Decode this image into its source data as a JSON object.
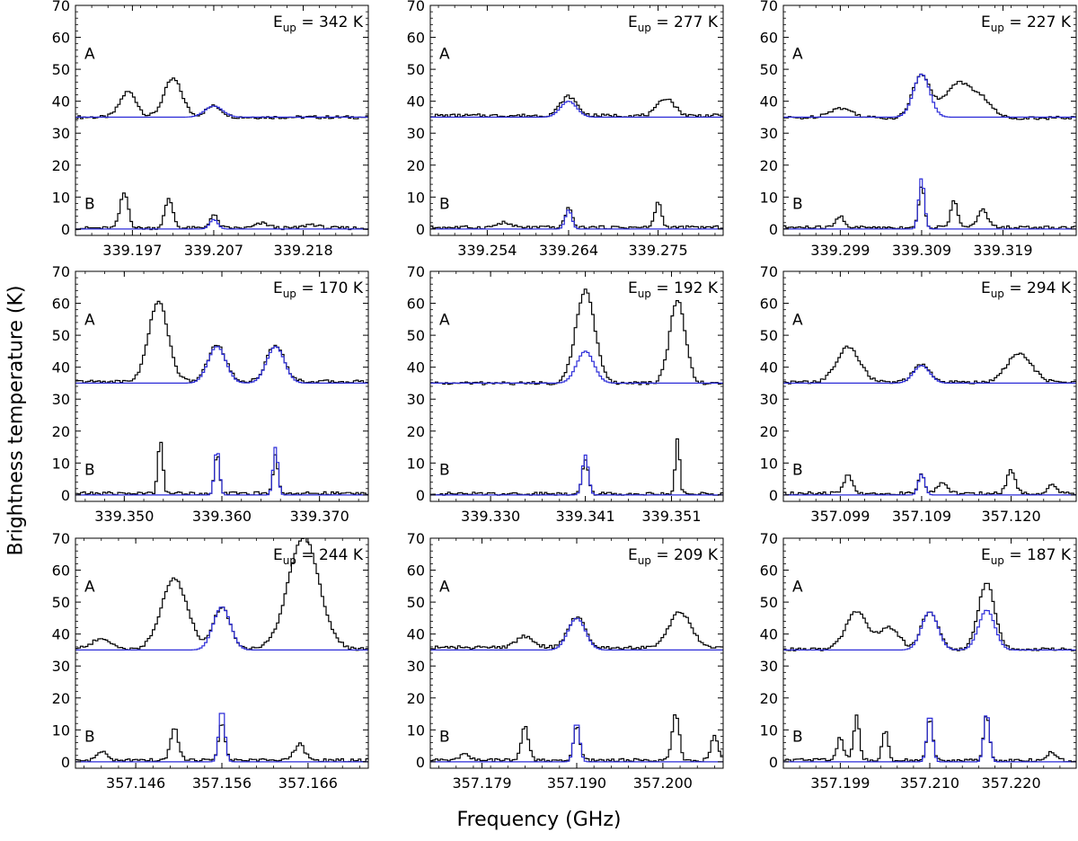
{
  "figure": {
    "xlabel": "Frequency (GHz)",
    "ylabel": "Brightness temperature (K)",
    "colors": {
      "observed": "#000000",
      "model": "#2b2bd8",
      "frame": "#000000"
    }
  },
  "chart_data": [
    {
      "type": "line",
      "panel": "1",
      "eup_label": "342 K",
      "ylim": [
        -2,
        70
      ],
      "yticks": [
        0,
        10,
        20,
        30,
        40,
        50,
        60,
        70
      ],
      "xlim": [
        339.19,
        339.226
      ],
      "xticks": [
        "339.197",
        "339.207",
        "339.218"
      ],
      "labels": [
        "A",
        "B"
      ],
      "series": [
        {
          "name": "observed A",
          "baseline": 35,
          "peaks": [
            [
              339.1965,
              8,
              1.0
            ],
            [
              339.202,
              12,
              1.1
            ],
            [
              339.207,
              3.5,
              1.0
            ]
          ]
        },
        {
          "name": "model A",
          "baseline": 35,
          "peaks": [
            [
              339.207,
              3.5,
              1.1
            ]
          ]
        },
        {
          "name": "observed B",
          "baseline": 0.3,
          "peaks": [
            [
              339.196,
              11,
              0.5
            ],
            [
              339.2015,
              9,
              0.5
            ],
            [
              339.207,
              4,
              0.5
            ],
            [
              339.213,
              1.5,
              0.8
            ],
            [
              339.219,
              1.2,
              0.8
            ]
          ]
        },
        {
          "name": "model B",
          "baseline": 0,
          "peaks": [
            [
              339.207,
              3,
              0.5
            ]
          ]
        }
      ]
    },
    {
      "type": "line",
      "panel": "2",
      "eup_label": "277 K",
      "ylim": [
        -2,
        70
      ],
      "yticks": [
        0,
        10,
        20,
        30,
        40,
        50,
        60,
        70
      ],
      "xlim": [
        339.247,
        339.283
      ],
      "xticks": [
        "339.254",
        "339.264",
        "339.275"
      ],
      "labels": [
        "A",
        "B"
      ],
      "series": [
        {
          "name": "observed A",
          "baseline": 35.5,
          "peaks": [
            [
              339.264,
              6,
              1.0
            ],
            [
              339.276,
              5.5,
              1.0
            ]
          ]
        },
        {
          "name": "model A",
          "baseline": 35,
          "peaks": [
            [
              339.264,
              5,
              1.0
            ]
          ]
        },
        {
          "name": "observed B",
          "baseline": 0.5,
          "peaks": [
            [
              339.264,
              6.5,
              0.4
            ],
            [
              339.275,
              8,
              0.4
            ],
            [
              339.256,
              1.5,
              0.8
            ]
          ]
        },
        {
          "name": "model B",
          "baseline": 0,
          "peaks": [
            [
              339.264,
              6,
              0.4
            ]
          ]
        }
      ]
    },
    {
      "type": "line",
      "panel": "3",
      "eup_label": "227 K",
      "ylim": [
        -2,
        70
      ],
      "yticks": [
        0,
        10,
        20,
        30,
        40,
        50,
        60,
        70
      ],
      "xlim": [
        339.292,
        339.328
      ],
      "xticks": [
        "339.299",
        "339.309",
        "339.319"
      ],
      "labels": [
        "A",
        "B"
      ],
      "series": [
        {
          "name": "observed A",
          "baseline": 34.8,
          "peaks": [
            [
              339.309,
              13.5,
              1.1
            ],
            [
              339.3135,
              11,
              1.6
            ],
            [
              339.299,
              3,
              1.5
            ],
            [
              339.3165,
              5,
              1.2
            ]
          ]
        },
        {
          "name": "model A",
          "baseline": 35,
          "peaks": [
            [
              339.309,
              13.5,
              1.0
            ]
          ]
        },
        {
          "name": "observed B",
          "baseline": 0.5,
          "peaks": [
            [
              339.309,
              13,
              0.35
            ],
            [
              339.313,
              9,
              0.4
            ],
            [
              339.3165,
              5.5,
              0.6
            ],
            [
              339.299,
              3.5,
              0.5
            ]
          ]
        },
        {
          "name": "model B",
          "baseline": 0,
          "peaks": [
            [
              339.309,
              16,
              0.35
            ]
          ]
        }
      ]
    },
    {
      "type": "line",
      "panel": "4",
      "eup_label": "170 K",
      "ylim": [
        -2,
        70
      ],
      "yticks": [
        0,
        10,
        20,
        30,
        40,
        50,
        60,
        70
      ],
      "xlim": [
        339.345,
        339.375
      ],
      "xticks": [
        "339.350",
        "339.360",
        "339.370"
      ],
      "labels": [
        "A",
        "B"
      ],
      "series": [
        {
          "name": "observed A",
          "baseline": 35.5,
          "peaks": [
            [
              339.3535,
              25,
              1.0
            ],
            [
              339.3595,
              11.5,
              0.9
            ],
            [
              339.3655,
              11.5,
              0.9
            ]
          ]
        },
        {
          "name": "model A",
          "baseline": 35,
          "peaks": [
            [
              339.3595,
              11.5,
              0.9
            ],
            [
              339.3655,
              11.5,
              0.9
            ]
          ]
        },
        {
          "name": "observed B",
          "baseline": 0.5,
          "peaks": [
            [
              339.3537,
              17,
              0.25
            ],
            [
              339.3595,
              12.5,
              0.25
            ],
            [
              339.3655,
              12,
              0.25
            ]
          ]
        },
        {
          "name": "model B",
          "baseline": 0,
          "peaks": [
            [
              339.3595,
              14.5,
              0.25
            ],
            [
              339.3655,
              15,
              0.25
            ]
          ]
        }
      ]
    },
    {
      "type": "line",
      "panel": "5",
      "eup_label": "192 K",
      "ylim": [
        -2,
        70
      ],
      "yticks": [
        0,
        10,
        20,
        30,
        40,
        50,
        60,
        70
      ],
      "xlim": [
        339.323,
        339.357
      ],
      "xticks": [
        "339.330",
        "339.341",
        "339.351"
      ],
      "labels": [
        "A",
        "B"
      ],
      "series": [
        {
          "name": "observed A",
          "baseline": 35,
          "peaks": [
            [
              339.341,
              29,
              1.1
            ],
            [
              339.3517,
              26,
              0.9
            ]
          ]
        },
        {
          "name": "model A",
          "baseline": 35,
          "peaks": [
            [
              339.341,
              10,
              1.0
            ]
          ]
        },
        {
          "name": "observed B",
          "baseline": 0.4,
          "peaks": [
            [
              339.341,
              11,
              0.35
            ],
            [
              339.3517,
              17.5,
              0.25
            ]
          ]
        },
        {
          "name": "model B",
          "baseline": 0,
          "peaks": [
            [
              339.341,
              12.5,
              0.35
            ]
          ]
        }
      ]
    },
    {
      "type": "line",
      "panel": "6",
      "eup_label": "294 K",
      "ylim": [
        -2,
        70
      ],
      "yticks": [
        0,
        10,
        20,
        30,
        40,
        50,
        60,
        70
      ],
      "xlim": [
        357.092,
        357.128
      ],
      "xticks": [
        "357.099",
        "357.109",
        "357.120"
      ],
      "labels": [
        "A",
        "B"
      ],
      "series": [
        {
          "name": "observed A",
          "baseline": 35.3,
          "peaks": [
            [
              357.1,
              11,
              1.4
            ],
            [
              357.109,
              5.5,
              1.0
            ],
            [
              357.121,
              9,
              1.5
            ]
          ]
        },
        {
          "name": "model A",
          "baseline": 35,
          "peaks": [
            [
              357.109,
              5.5,
              1.0
            ]
          ]
        },
        {
          "name": "observed B",
          "baseline": 0.5,
          "peaks": [
            [
              357.1,
              6,
              0.5
            ],
            [
              357.109,
              6,
              0.4
            ],
            [
              357.12,
              7.5,
              0.5
            ],
            [
              357.125,
              2.5,
              0.5
            ],
            [
              357.1115,
              3,
              0.6
            ]
          ]
        },
        {
          "name": "model B",
          "baseline": 0,
          "peaks": [
            [
              357.109,
              6.5,
              0.4
            ]
          ]
        }
      ]
    },
    {
      "type": "line",
      "panel": "7",
      "eup_label": "244 K",
      "ylim": [
        -2,
        70
      ],
      "yticks": [
        0,
        10,
        20,
        30,
        40,
        50,
        60,
        70
      ],
      "xlim": [
        357.139,
        357.173
      ],
      "xticks": [
        "357.146",
        "357.156",
        "357.166"
      ],
      "labels": [
        "A",
        "B"
      ],
      "series": [
        {
          "name": "observed A",
          "baseline": 35.3,
          "peaks": [
            [
              357.1505,
              22,
              1.5
            ],
            [
              357.156,
              13,
              1.0
            ],
            [
              357.1655,
              35,
              1.8
            ],
            [
              357.142,
              3,
              1.2
            ]
          ]
        },
        {
          "name": "model A",
          "baseline": 35,
          "peaks": [
            [
              357.156,
              13.5,
              1.0
            ]
          ]
        },
        {
          "name": "observed B",
          "baseline": 0.5,
          "peaks": [
            [
              357.1505,
              10,
              0.45
            ],
            [
              357.156,
              12,
              0.35
            ],
            [
              357.165,
              5,
              0.6
            ],
            [
              357.142,
              3,
              0.5
            ]
          ]
        },
        {
          "name": "model B",
          "baseline": 0,
          "peaks": [
            [
              357.156,
              16.5,
              0.35
            ]
          ]
        }
      ]
    },
    {
      "type": "line",
      "panel": "8",
      "eup_label": "209 K",
      "ylim": [
        -2,
        70
      ],
      "yticks": [
        0,
        10,
        20,
        30,
        40,
        50,
        60,
        70
      ],
      "xlim": [
        357.173,
        357.207
      ],
      "xticks": [
        "357.179",
        "357.190",
        "357.200"
      ],
      "labels": [
        "A",
        "B"
      ],
      "series": [
        {
          "name": "observed A",
          "baseline": 35.8,
          "peaks": [
            [
              357.19,
              9.5,
              1.0
            ],
            [
              357.202,
              11,
              1.3
            ],
            [
              357.184,
              3.5,
              1.0
            ]
          ]
        },
        {
          "name": "model A",
          "baseline": 35,
          "peaks": [
            [
              357.19,
              10,
              1.0
            ]
          ]
        },
        {
          "name": "observed B",
          "baseline": 0.5,
          "peaks": [
            [
              357.184,
              11,
              0.4
            ],
            [
              357.19,
              11,
              0.35
            ],
            [
              357.2015,
              14.5,
              0.4
            ],
            [
              357.177,
              2.5,
              0.5
            ],
            [
              357.206,
              8,
              0.4
            ]
          ]
        },
        {
          "name": "model B",
          "baseline": 0,
          "peaks": [
            [
              357.19,
              12.5,
              0.35
            ]
          ]
        }
      ]
    },
    {
      "type": "line",
      "panel": "9",
      "eup_label": "187 K",
      "ylim": [
        -2,
        70
      ],
      "yticks": [
        0,
        10,
        20,
        30,
        40,
        50,
        60,
        70
      ],
      "xlim": [
        357.192,
        357.228
      ],
      "xticks": [
        "357.199",
        "357.210",
        "357.220"
      ],
      "labels": [
        "A",
        "B"
      ],
      "series": [
        {
          "name": "observed A",
          "baseline": 35.2,
          "peaks": [
            [
              357.201,
              12,
              1.3
            ],
            [
              357.205,
              7,
              1.2
            ],
            [
              357.21,
              12,
              1.0
            ],
            [
              357.217,
              21,
              1.0
            ]
          ]
        },
        {
          "name": "model A",
          "baseline": 35,
          "peaks": [
            [
              357.21,
              12,
              1.0
            ],
            [
              357.217,
              12.5,
              1.0
            ]
          ]
        },
        {
          "name": "observed B",
          "baseline": 0.5,
          "peaks": [
            [
              357.199,
              7,
              0.4
            ],
            [
              357.201,
              14,
              0.35
            ],
            [
              357.2045,
              9.5,
              0.35
            ],
            [
              357.21,
              13.5,
              0.35
            ],
            [
              357.217,
              14.5,
              0.35
            ],
            [
              357.225,
              2.5,
              0.5
            ]
          ]
        },
        {
          "name": "model B",
          "baseline": 0,
          "peaks": [
            [
              357.21,
              15,
              0.35
            ],
            [
              357.217,
              15.5,
              0.35
            ]
          ]
        }
      ]
    }
  ]
}
